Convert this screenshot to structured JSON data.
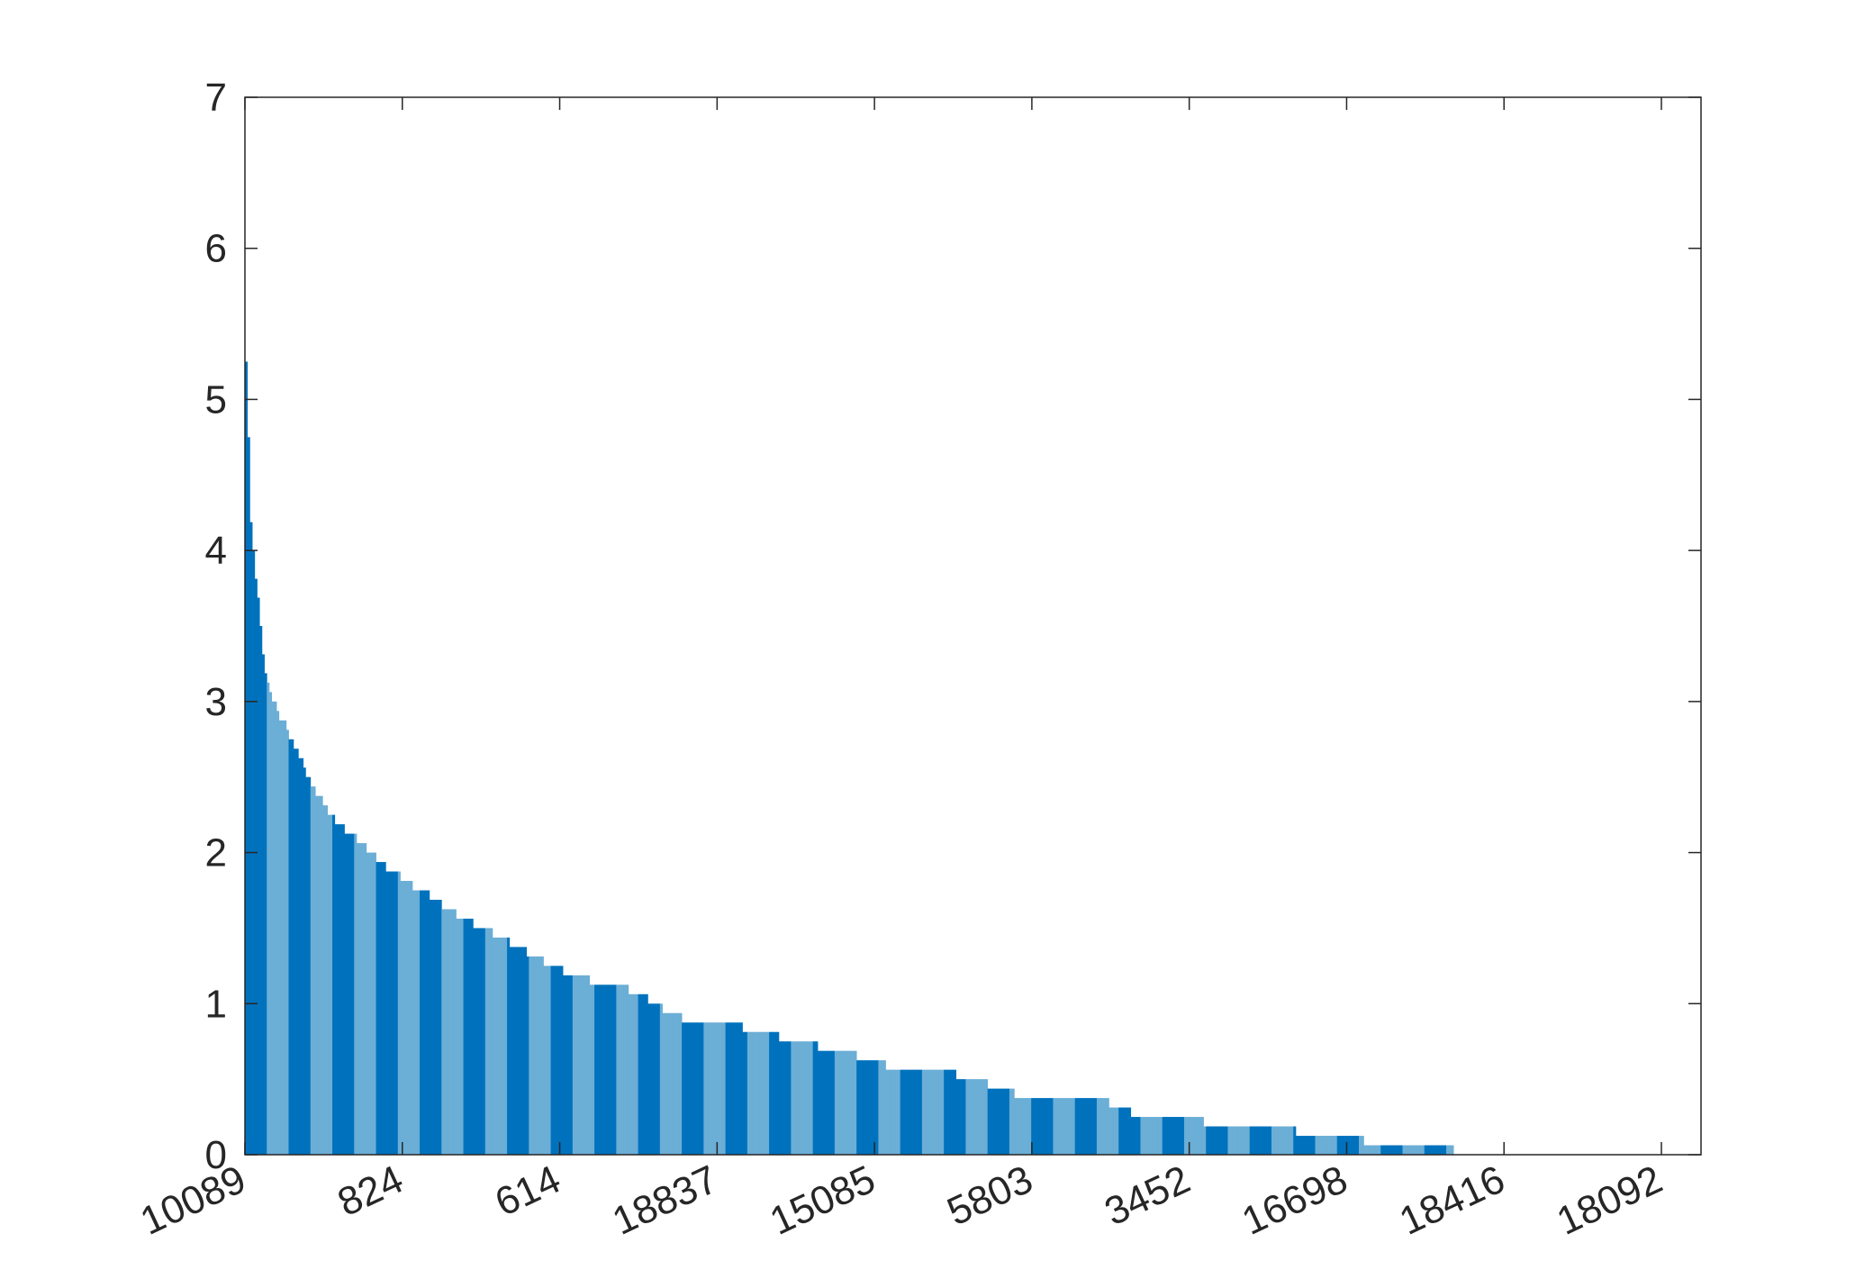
{
  "chart_data": {
    "type": "bar",
    "title": "",
    "xlabel": "",
    "ylabel": "",
    "ylim": [
      0,
      7
    ],
    "yticks": [
      0,
      1,
      2,
      3,
      4,
      5,
      6,
      7
    ],
    "ytick_labels": [
      "0",
      "1",
      "2",
      "3",
      "4",
      "5",
      "6",
      "7"
    ],
    "xtick_labels": [
      "10089",
      "824",
      "614",
      "18837",
      "15085",
      "5803",
      "3452",
      "16698",
      "18416",
      "18092"
    ],
    "grid": false,
    "legend": "none",
    "bar_count": 600,
    "colors": {
      "bar_fill": "#6baed6",
      "bar_edge": "#0072bd",
      "axes": "#262626",
      "background": "#ffffff"
    },
    "profile": [
      [
        0,
        5.25
      ],
      [
        1,
        4.9
      ],
      [
        3,
        4.1
      ],
      [
        5,
        3.9
      ],
      [
        7,
        3.65
      ],
      [
        9,
        3.4
      ],
      [
        11,
        3.2
      ],
      [
        13,
        3.1
      ],
      [
        16,
        3.0
      ],
      [
        19,
        2.9
      ],
      [
        22,
        2.85
      ],
      [
        26,
        2.75
      ],
      [
        30,
        2.65
      ],
      [
        34,
        2.55
      ],
      [
        37,
        2.45
      ],
      [
        40,
        2.4
      ],
      [
        43,
        2.35
      ],
      [
        46,
        2.28
      ],
      [
        50,
        2.22
      ],
      [
        55,
        2.17
      ],
      [
        60,
        2.12
      ],
      [
        65,
        2.07
      ],
      [
        70,
        2.02
      ],
      [
        73,
        1.98
      ],
      [
        77,
        1.93
      ],
      [
        85,
        1.87
      ],
      [
        91,
        1.81
      ],
      [
        100,
        1.75
      ],
      [
        108,
        1.69
      ],
      [
        115,
        1.62
      ],
      [
        125,
        1.56
      ],
      [
        135,
        1.5
      ],
      [
        145,
        1.44
      ],
      [
        155,
        1.37
      ],
      [
        165,
        1.31
      ],
      [
        175,
        1.25
      ],
      [
        185,
        1.19
      ],
      [
        195,
        1.16
      ],
      [
        205,
        1.12
      ],
      [
        220,
        1.09
      ],
      [
        226,
        1.06
      ],
      [
        232,
        1.0
      ],
      [
        240,
        0.95
      ],
      [
        250,
        0.9
      ],
      [
        265,
        0.87
      ],
      [
        285,
        0.84
      ],
      [
        300,
        0.8
      ],
      [
        310,
        0.75
      ],
      [
        325,
        0.72
      ],
      [
        340,
        0.69
      ],
      [
        355,
        0.63
      ],
      [
        370,
        0.57
      ],
      [
        395,
        0.55
      ],
      [
        410,
        0.52
      ],
      [
        425,
        0.46
      ],
      [
        440,
        0.4
      ],
      [
        455,
        0.39
      ],
      [
        470,
        0.38
      ],
      [
        487,
        0.37
      ],
      [
        495,
        0.32
      ],
      [
        505,
        0.28
      ],
      [
        525,
        0.24
      ],
      [
        555,
        0.21
      ],
      [
        570,
        0.18
      ],
      [
        585,
        0.17
      ],
      [
        605,
        0.15
      ],
      [
        620,
        0.12
      ],
      [
        640,
        0.09
      ],
      [
        660,
        0.07
      ],
      [
        670,
        0.05
      ],
      [
        690,
        0.03
      ],
      [
        720,
        0.015
      ],
      [
        740,
        0.006
      ],
      [
        755,
        0.003
      ],
      [
        830,
        0.0
      ]
    ]
  }
}
